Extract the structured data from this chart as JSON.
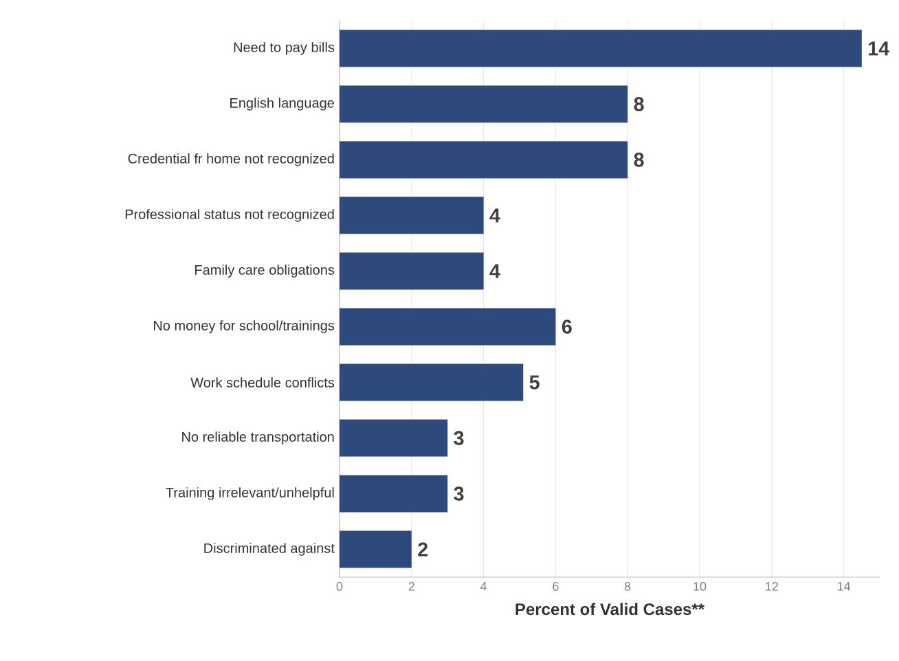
{
  "chart_data": {
    "type": "bar",
    "orientation": "horizontal",
    "xlabel": "Percent of Valid Cases**",
    "categories": [
      "Need to pay bills",
      "English language",
      "Credential fr home not recognized",
      "Professional status not recognized",
      "Family care obligations",
      "No money for school/trainings",
      "Work schedule conflicts",
      "No reliable transportation",
      "Training irrelevant/unhelpful",
      "Discriminated against"
    ],
    "values": [
      14.5,
      8,
      8,
      4,
      4,
      6,
      5.1,
      3,
      3,
      2
    ],
    "value_labels": [
      "14",
      "8",
      "8",
      "4",
      "4",
      "6",
      "5",
      "3",
      "3",
      "2"
    ],
    "color": "#2e4a7d",
    "xlim": [
      0,
      15
    ],
    "xticks": [
      0,
      2,
      4,
      6,
      8,
      10,
      12,
      14
    ],
    "grid": "x"
  }
}
